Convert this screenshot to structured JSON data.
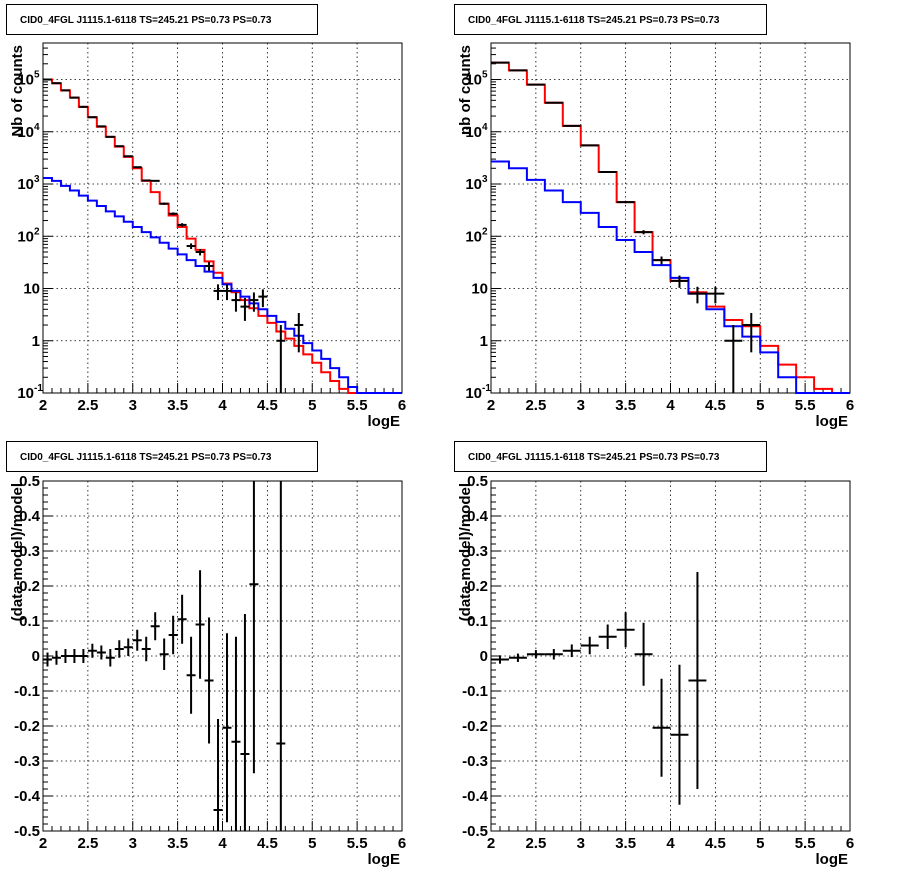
{
  "chart_data": [
    {
      "type": "line",
      "title": "CID0_4FGL J1115.1-6118 TS=245.21 PS=0.73 PS=0.73",
      "xlabel": "logE",
      "ylabel": "Nb of counts",
      "xlim": [
        2,
        6
      ],
      "ylim": [
        0.1,
        500000
      ],
      "yscale": "log",
      "grid": true,
      "xticks": [
        "2",
        "2.5",
        "3",
        "3.5",
        "4",
        "4.5",
        "5",
        "5.5",
        "6"
      ],
      "yticks": [
        {
          "value": 0.1,
          "label": "10",
          "exp": "-1"
        },
        {
          "value": 1,
          "label": "1",
          "exp": ""
        },
        {
          "value": 10,
          "label": "10",
          "exp": ""
        },
        {
          "value": 100,
          "label": "10",
          "exp": "2"
        },
        {
          "value": 1000,
          "label": "10",
          "exp": "3"
        },
        {
          "value": 10000,
          "label": "10",
          "exp": "4"
        },
        {
          "value": 100000,
          "label": "10",
          "exp": "5"
        }
      ],
      "series": [
        {
          "color": "#ff0000",
          "style": "step",
          "bin_edges": [
            2.0,
            2.1,
            2.2,
            2.3,
            2.4,
            2.5,
            2.6,
            2.7,
            2.8,
            2.9,
            3.0,
            3.1,
            3.2,
            3.3,
            3.4,
            3.5,
            3.6,
            3.7,
            3.8,
            3.9,
            4.0,
            4.1,
            4.2,
            4.3,
            4.4,
            4.5,
            4.6,
            4.7,
            4.8,
            4.9,
            5.0,
            5.1,
            5.2,
            5.3,
            5.4,
            5.5,
            5.6,
            5.7,
            5.8,
            5.9,
            6.0
          ],
          "values": [
            100000,
            85000,
            62000,
            45000,
            30000,
            19000,
            12500,
            8000,
            5200,
            3300,
            2000,
            1150,
            700,
            420,
            250,
            150,
            90,
            55,
            33,
            20,
            12.5,
            8.5,
            6,
            4.2,
            3,
            2.2,
            1.5,
            1.1,
            0.8,
            0.55,
            0.38,
            0.25,
            0.17,
            0.12,
            0.1,
            0.1,
            0.1,
            0.1,
            0.1,
            0.1
          ]
        },
        {
          "color": "#0000ff",
          "style": "step",
          "bin_edges": [
            2.0,
            2.1,
            2.2,
            2.3,
            2.4,
            2.5,
            2.6,
            2.7,
            2.8,
            2.9,
            3.0,
            3.1,
            3.2,
            3.3,
            3.4,
            3.5,
            3.6,
            3.7,
            3.8,
            3.9,
            4.0,
            4.1,
            4.2,
            4.3,
            4.4,
            4.5,
            4.6,
            4.7,
            4.8,
            4.9,
            5.0,
            5.1,
            5.2,
            5.3,
            5.4,
            5.5,
            5.6,
            5.7,
            5.8,
            5.9,
            6.0
          ],
          "values": [
            1300,
            1150,
            920,
            750,
            600,
            480,
            380,
            300,
            240,
            190,
            150,
            120,
            95,
            75,
            58,
            45,
            35,
            27,
            21,
            16,
            12,
            9,
            7,
            5.2,
            4,
            3,
            2.3,
            1.7,
            1.25,
            0.9,
            0.65,
            0.45,
            0.3,
            0.2,
            0.13,
            0.1,
            0.1,
            0.1,
            0.1,
            0.1
          ]
        },
        {
          "color": "#000000",
          "style": "errorbar",
          "x": [
            2.05,
            2.15,
            2.25,
            2.35,
            2.45,
            2.55,
            2.65,
            2.75,
            2.85,
            2.95,
            3.05,
            3.15,
            3.25,
            3.35,
            3.45,
            3.55,
            3.65,
            3.75,
            3.85,
            3.95,
            4.05,
            4.15,
            4.25,
            4.35,
            4.45,
            4.65,
            4.85
          ],
          "y": [
            100000,
            85000,
            62000,
            45000,
            30000,
            19000,
            12700,
            8000,
            5300,
            3400,
            2100,
            1170,
            1150,
            420,
            270,
            165,
            65,
            50,
            27,
            9,
            9,
            6,
            4.5,
            6,
            7,
            1,
            2
          ],
          "err_low": [
            300,
            280,
            240,
            200,
            170,
            140,
            110,
            90,
            73,
            58,
            46,
            34,
            34,
            20,
            16,
            13,
            8,
            7,
            5.2,
            3,
            3,
            2.4,
            2.1,
            2.4,
            2.6,
            0.9,
            1.4
          ],
          "err_high": [
            300,
            280,
            240,
            200,
            170,
            140,
            110,
            90,
            73,
            58,
            46,
            34,
            34,
            20,
            16,
            13,
            8,
            7,
            5.2,
            3,
            3,
            2.4,
            2.1,
            2.4,
            2.6,
            1,
            1.4
          ]
        }
      ]
    },
    {
      "type": "line",
      "title": "CID0_4FGL J1115.1-6118 TS=245.21 PS=0.73 PS=0.73",
      "xlabel": "logE",
      "ylabel": "nb of counts",
      "xlim": [
        2,
        6
      ],
      "ylim": [
        0.1,
        500000
      ],
      "yscale": "log",
      "grid": true,
      "xticks": [
        "2",
        "2.5",
        "3",
        "3.5",
        "4",
        "4.5",
        "5",
        "5.5",
        "6"
      ],
      "yticks": [
        {
          "value": 0.1,
          "label": "10",
          "exp": "-1"
        },
        {
          "value": 1,
          "label": "1",
          "exp": ""
        },
        {
          "value": 10,
          "label": "10",
          "exp": ""
        },
        {
          "value": 100,
          "label": "10",
          "exp": "2"
        },
        {
          "value": 1000,
          "label": "10",
          "exp": "3"
        },
        {
          "value": 10000,
          "label": "10",
          "exp": "4"
        },
        {
          "value": 100000,
          "label": "10",
          "exp": "5"
        }
      ],
      "series": [
        {
          "color": "#ff0000",
          "style": "step",
          "bin_edges": [
            2.0,
            2.2,
            2.4,
            2.6,
            2.8,
            3.0,
            3.2,
            3.4,
            3.6,
            3.8,
            4.0,
            4.2,
            4.4,
            4.6,
            4.8,
            5.0,
            5.2,
            5.4,
            5.6,
            5.8,
            6.0
          ],
          "values": [
            210000,
            150000,
            80000,
            36000,
            13000,
            5500,
            1700,
            450,
            120,
            35,
            14,
            8.5,
            4.5,
            2.5,
            1.9,
            0.8,
            0.35,
            0.2,
            0.12,
            0.1
          ]
        },
        {
          "color": "#0000ff",
          "style": "step",
          "bin_edges": [
            2.0,
            2.2,
            2.4,
            2.6,
            2.8,
            3.0,
            3.2,
            3.4,
            3.6,
            3.8,
            4.0,
            4.2,
            4.4,
            4.6,
            4.8,
            5.0,
            5.2,
            5.4,
            5.6,
            5.8,
            6.0
          ],
          "values": [
            2700,
            2000,
            1200,
            750,
            450,
            280,
            150,
            85,
            50,
            28,
            16,
            8,
            4,
            1.9,
            1.2,
            0.6,
            0.2,
            0.1,
            0.1,
            0.1
          ]
        },
        {
          "color": "#000000",
          "style": "errorbar",
          "x": [
            2.1,
            2.3,
            2.5,
            2.7,
            2.9,
            3.1,
            3.3,
            3.5,
            3.7,
            3.9,
            4.1,
            4.3,
            4.5,
            4.7,
            4.9
          ],
          "y": [
            210000,
            150000,
            80000,
            36000,
            13000,
            5500,
            1700,
            450,
            120,
            35,
            14,
            8,
            8,
            1,
            2
          ],
          "err_low": [
            460,
            390,
            280,
            190,
            115,
            74,
            41,
            21,
            11,
            6,
            3.7,
            2.8,
            2.8,
            0.9,
            1.4
          ],
          "err_high": [
            460,
            390,
            280,
            190,
            115,
            74,
            41,
            21,
            11,
            6,
            3.7,
            2.8,
            2.8,
            1,
            1.4
          ]
        }
      ]
    },
    {
      "type": "scatter",
      "title": "CID0_4FGL J1115.1-6118 TS=245.21 PS=0.73 PS=0.73",
      "xlabel": "logE",
      "ylabel": "(data-model)/model",
      "xlim": [
        2,
        6
      ],
      "ylim": [
        -0.5,
        0.5
      ],
      "grid": true,
      "xticks": [
        "2",
        "2.5",
        "3",
        "3.5",
        "4",
        "4.5",
        "5",
        "5.5",
        "6"
      ],
      "yticks": [
        "-0.5",
        "-0.4",
        "-0.3",
        "-0.2",
        "-0.1",
        "0",
        "0.1",
        "0.2",
        "0.3",
        "0.4",
        "0.5"
      ],
      "series": [
        {
          "color": "#000000",
          "style": "errorbar",
          "x": [
            2.05,
            2.15,
            2.25,
            2.35,
            2.45,
            2.55,
            2.65,
            2.75,
            2.85,
            2.95,
            3.05,
            3.15,
            3.25,
            3.35,
            3.45,
            3.55,
            3.65,
            3.75,
            3.85,
            3.95,
            4.05,
            4.15,
            4.25,
            4.35,
            4.65
          ],
          "y": [
            -0.01,
            -0.005,
            0.0,
            0.0,
            0.0,
            0.015,
            0.01,
            -0.005,
            0.02,
            0.025,
            0.045,
            0.02,
            0.085,
            0.005,
            0.06,
            0.105,
            -0.055,
            0.09,
            -0.07,
            -0.44,
            -0.205,
            -0.245,
            -0.28,
            0.205,
            -0.25
          ],
          "err": [
            0.02,
            0.02,
            0.02,
            0.02,
            0.02,
            0.02,
            0.02,
            0.025,
            0.025,
            0.025,
            0.03,
            0.035,
            0.04,
            0.045,
            0.055,
            0.07,
            0.11,
            0.155,
            0.18,
            0.26,
            0.27,
            0.3,
            0.4,
            0.54,
            1.2
          ]
        }
      ]
    },
    {
      "type": "scatter",
      "title": "CID0_4FGL J1115.1-6118 TS=245.21 PS=0.73 PS=0.73",
      "xlabel": "logE",
      "ylabel": "(data-model)/model",
      "xlim": [
        2,
        6
      ],
      "ylim": [
        -0.5,
        0.5
      ],
      "grid": true,
      "xticks": [
        "2",
        "2.5",
        "3",
        "3.5",
        "4",
        "4.5",
        "5",
        "5.5",
        "6"
      ],
      "yticks": [
        "-0.5",
        "-0.4",
        "-0.3",
        "-0.2",
        "-0.1",
        "0",
        "0.1",
        "0.2",
        "0.3",
        "0.4",
        "0.5"
      ],
      "series": [
        {
          "color": "#000000",
          "style": "errorbar",
          "x": [
            2.1,
            2.3,
            2.5,
            2.7,
            2.9,
            3.1,
            3.3,
            3.5,
            3.7,
            3.9,
            4.1,
            4.3
          ],
          "y": [
            -0.01,
            -0.005,
            0.005,
            0.005,
            0.015,
            0.03,
            0.055,
            0.075,
            0.005,
            -0.205,
            -0.225,
            -0.07
          ],
          "err": [
            0.012,
            0.012,
            0.012,
            0.015,
            0.018,
            0.025,
            0.035,
            0.05,
            0.09,
            0.14,
            0.2,
            0.31
          ]
        }
      ]
    }
  ]
}
